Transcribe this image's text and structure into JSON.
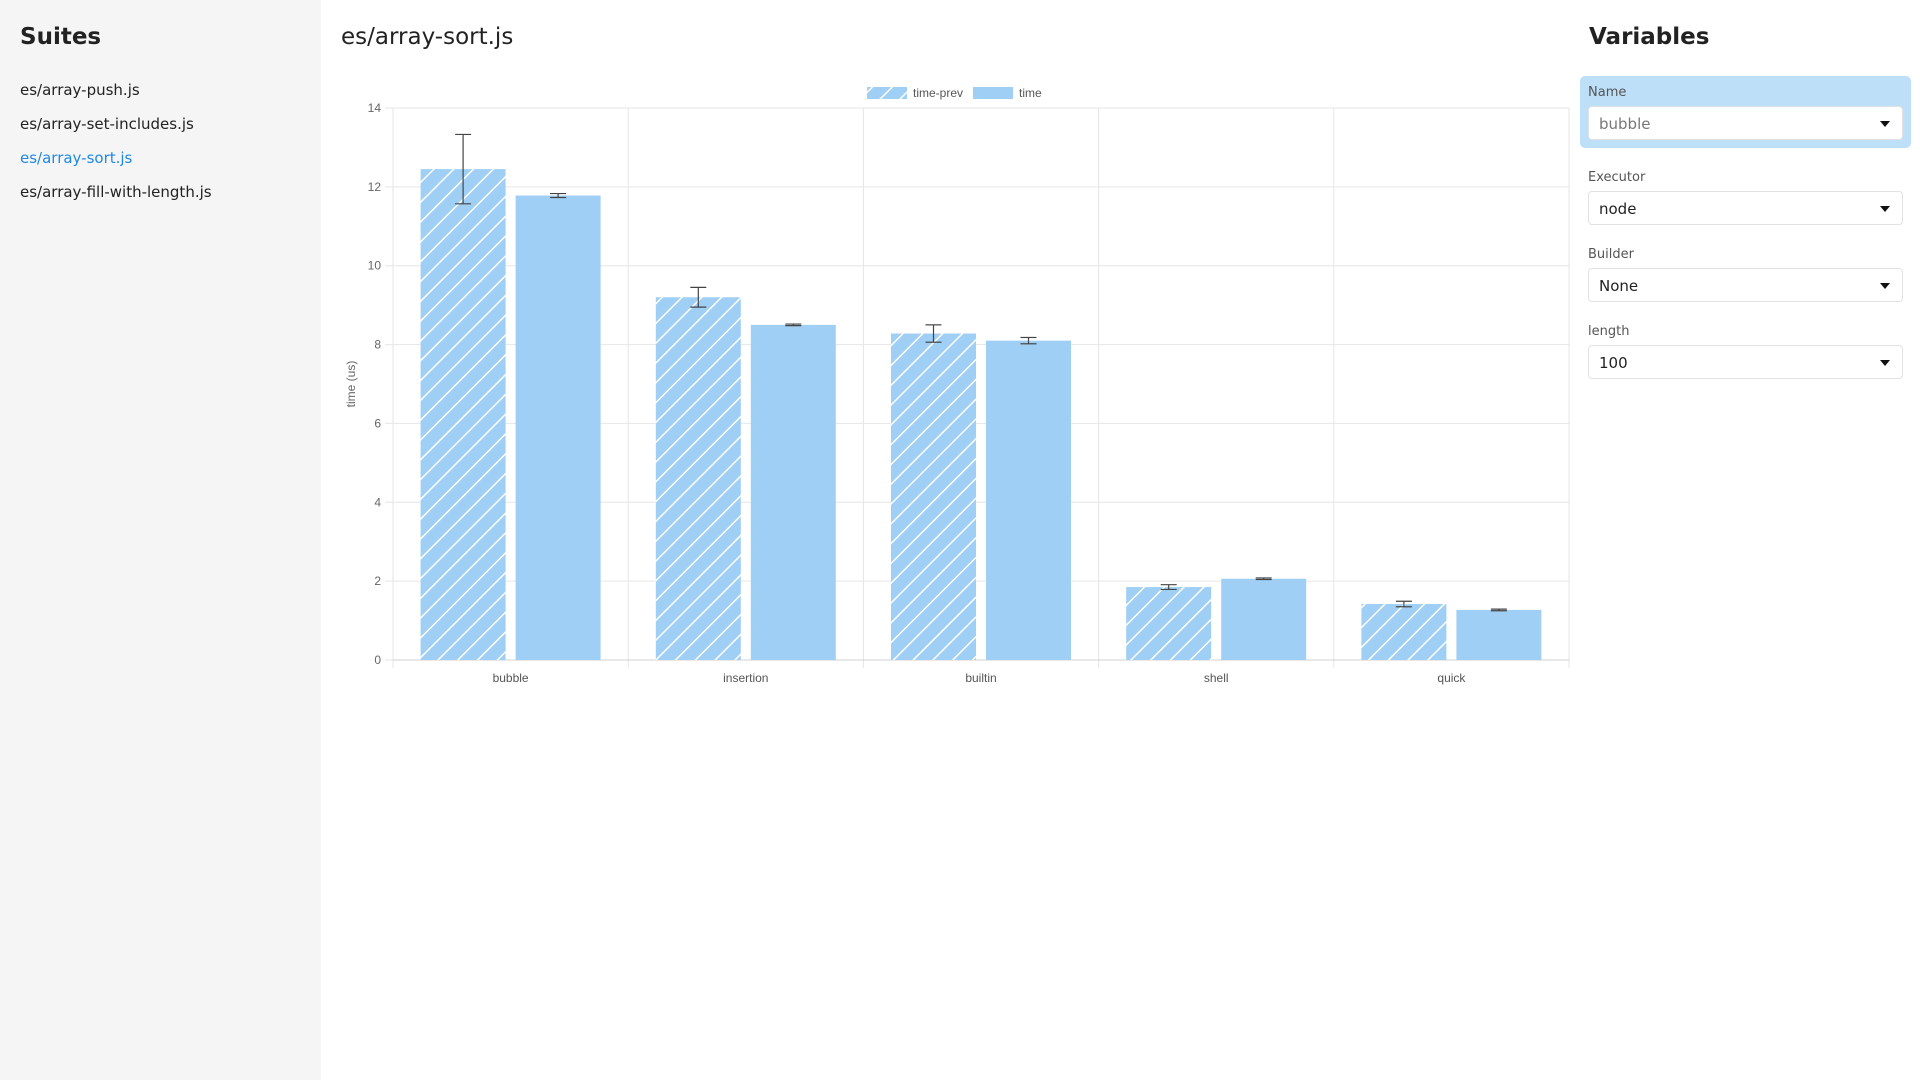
{
  "sidebar": {
    "title": "Suites",
    "items": [
      {
        "label": "es/array-push.js",
        "active": false
      },
      {
        "label": "es/array-set-includes.js",
        "active": false
      },
      {
        "label": "es/array-sort.js",
        "active": true
      },
      {
        "label": "es/array-fill-with-length.js",
        "active": false
      }
    ]
  },
  "main": {
    "title": "es/array-sort.js"
  },
  "variables": {
    "title": "Variables",
    "fields": [
      {
        "label": "Name",
        "value": "bubble",
        "selected": true
      },
      {
        "label": "Executor",
        "value": "node",
        "selected": false
      },
      {
        "label": "Builder",
        "value": "None",
        "selected": false
      },
      {
        "label": "length",
        "value": "100",
        "selected": false
      }
    ]
  },
  "colors": {
    "bar_fill": "#9fcff4",
    "hatch_line": "#ffffff",
    "grid": "#e6e6e6",
    "active_link": "#1e88e5",
    "selected_group": "#bde0f8"
  },
  "chart_data": {
    "type": "bar",
    "title": "",
    "xlabel": "",
    "ylabel": "time (us)",
    "ylim": [
      0,
      14
    ],
    "yticks": [
      0,
      2,
      4,
      6,
      8,
      10,
      12,
      14
    ],
    "categories": [
      "bubble",
      "insertion",
      "builtin",
      "shell",
      "quick"
    ],
    "legend_position": "top-center",
    "grid": true,
    "series": [
      {
        "name": "time-prev",
        "pattern": "hatched",
        "values": [
          12.45,
          9.2,
          8.28,
          1.85,
          1.42
        ],
        "error": [
          0.88,
          0.25,
          0.22,
          0.06,
          0.07
        ]
      },
      {
        "name": "time",
        "pattern": "solid",
        "values": [
          11.78,
          8.5,
          8.1,
          2.06,
          1.27
        ],
        "error": [
          0.05,
          0.02,
          0.08,
          0.02,
          0.02
        ]
      }
    ]
  }
}
